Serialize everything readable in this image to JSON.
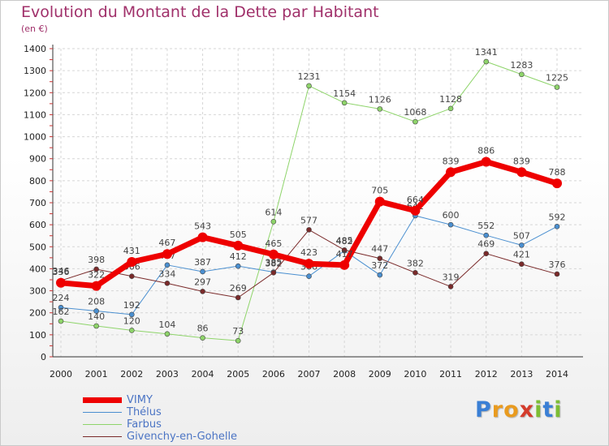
{
  "title": "Evolution du Montant de la Dette par Habitant",
  "unit_label": "(en €)",
  "logo": {
    "letters": [
      "P",
      "r",
      "o",
      "x",
      "i",
      "t",
      "i"
    ],
    "colors": [
      "#3a7fd5",
      "#e99b1f",
      "#e99b1f",
      "#d43b2b",
      "#7dbd34",
      "#3a7fd5",
      "#7dbd34"
    ]
  },
  "chart_data": {
    "type": "line",
    "title": "Evolution du Montant de la Dette par Habitant",
    "ylabel": "(en €)",
    "xlabel": "",
    "categories": [
      "2000",
      "2001",
      "2002",
      "2003",
      "2004",
      "2005",
      "2006",
      "2007",
      "2008",
      "2009",
      "2010",
      "2011",
      "2012",
      "2013",
      "2014"
    ],
    "ylim": [
      0,
      1400
    ],
    "yticks": [
      0,
      100,
      200,
      300,
      400,
      500,
      600,
      700,
      800,
      900,
      1000,
      1100,
      1200,
      1300,
      1400
    ],
    "grid": true,
    "legend_position": "bottom-left",
    "series": [
      {
        "name": "Thélus",
        "color": "#4a8fd0",
        "width": 1,
        "values": [
          224,
          208,
          192,
          417,
          387,
          412,
          385,
          366,
          482,
          372,
          641,
          600,
          552,
          507,
          592
        ],
        "labels": [
          "224",
          "208",
          "192",
          "417",
          "387",
          "412",
          "385",
          "366",
          "482",
          "372",
          "641",
          "600",
          "552",
          "507",
          "592"
        ]
      },
      {
        "name": "Farbus",
        "color": "#8ed46a",
        "width": 1,
        "values": [
          162,
          140,
          120,
          104,
          86,
          73,
          614,
          1231,
          1154,
          1126,
          1068,
          1128,
          1341,
          1283,
          1225
        ],
        "labels": [
          "162",
          "140",
          "120",
          "104",
          "86",
          "73",
          "614",
          "1231",
          "1154",
          "1126",
          "1068",
          "1128",
          "1341",
          "1283",
          "1225"
        ]
      },
      {
        "name": "Givenchy-en-Gohelle",
        "color": "#7a2a2a",
        "width": 1,
        "values": [
          346,
          398,
          366,
          334,
          297,
          269,
          382,
          577,
          485,
          447,
          382,
          319,
          469,
          421,
          376
        ],
        "labels": [
          "346",
          "398",
          "366",
          "334",
          "297",
          "269",
          "382",
          "577",
          "485",
          "447",
          "382",
          "319",
          "469",
          "421",
          "376"
        ]
      },
      {
        "name": "VIMY",
        "color": "#ee0000",
        "width": 7,
        "values": [
          336,
          322,
          431,
          467,
          543,
          505,
          465,
          423,
          417,
          705,
          664,
          839,
          886,
          839,
          788
        ],
        "labels": [
          "336",
          "322",
          "431",
          "467",
          "543",
          "505",
          "465",
          "423",
          "417",
          "705",
          "664",
          "839",
          "886",
          "839",
          "788"
        ]
      }
    ]
  },
  "legend": [
    {
      "name": "VIMY",
      "color": "#ee0000",
      "width": 7
    },
    {
      "name": "Thélus",
      "color": "#4a8fd0",
      "width": 1
    },
    {
      "name": "Farbus",
      "color": "#8ed46a",
      "width": 1
    },
    {
      "name": "Givenchy-en-Gohelle",
      "color": "#7a2a2a",
      "width": 1
    }
  ]
}
